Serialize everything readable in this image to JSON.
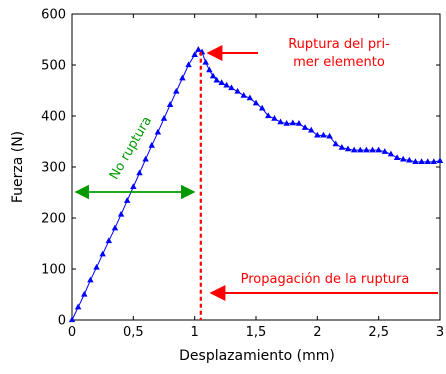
{
  "chart_data": {
    "type": "line",
    "xlabel": "Desplazamiento (mm)",
    "ylabel": "Fuerza (N)",
    "xlim": [
      0,
      3
    ],
    "ylim": [
      0,
      600
    ],
    "x_ticks": [
      "0",
      "0,5",
      "1",
      "1,5",
      "2",
      "2,5",
      "3"
    ],
    "y_ticks": [
      "0",
      "100",
      "200",
      "300",
      "400",
      "500",
      "600"
    ],
    "grid": false,
    "series": [
      {
        "color": "#0000ff",
        "marker": "triangle",
        "x": [
          0.0,
          0.05,
          0.1,
          0.15,
          0.2,
          0.25,
          0.3,
          0.35,
          0.4,
          0.45,
          0.5,
          0.55,
          0.6,
          0.65,
          0.7,
          0.75,
          0.8,
          0.85,
          0.9,
          0.95,
          1.0,
          1.03,
          1.06,
          1.09,
          1.12,
          1.15,
          1.18,
          1.22,
          1.26,
          1.3,
          1.35,
          1.4,
          1.45,
          1.5,
          1.55,
          1.6,
          1.65,
          1.7,
          1.75,
          1.8,
          1.85,
          1.9,
          1.95,
          2.0,
          2.05,
          2.1,
          2.15,
          2.2,
          2.25,
          2.3,
          2.35,
          2.4,
          2.45,
          2.5,
          2.55,
          2.6,
          2.65,
          2.7,
          2.75,
          2.8,
          2.85,
          2.9,
          2.95,
          3.0
        ],
        "y": [
          0,
          25,
          50,
          78,
          103,
          129,
          155,
          180,
          207,
          234,
          261,
          288,
          315,
          342,
          368,
          395,
          422,
          448,
          474,
          500,
          520,
          530,
          525,
          505,
          490,
          478,
          470,
          465,
          460,
          455,
          448,
          440,
          435,
          425,
          415,
          400,
          395,
          388,
          385,
          386,
          385,
          377,
          372,
          362,
          362,
          360,
          345,
          338,
          335,
          333,
          333,
          333,
          333,
          333,
          330,
          325,
          318,
          315,
          313,
          310,
          310,
          310,
          310,
          312
        ]
      }
    ],
    "annotations": {
      "rupture_label": [
        "Ruptura del pri-",
        "mer elemento"
      ],
      "propagation_label": "Propagación de la ruptura",
      "no_rupture_label": "No ruptura"
    },
    "reference_lines": {
      "rupture_x": 1.05
    },
    "colors": {
      "red": "#ff0000",
      "green": "#009900",
      "blue": "#0000ff"
    }
  }
}
